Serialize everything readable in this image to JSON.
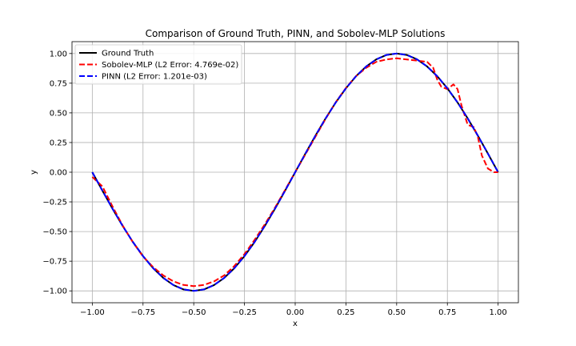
{
  "chart_data": {
    "type": "line",
    "title": "Comparison of Ground Truth, PINN, and Sobolev-MLP Solutions",
    "xlabel": "x",
    "ylabel": "y",
    "xlim": [
      -1.1,
      1.1
    ],
    "ylim": [
      -1.1,
      1.1
    ],
    "grid": true,
    "legend_position": "top-left",
    "xticks": [
      -1.0,
      -0.75,
      -0.5,
      -0.25,
      0.0,
      0.25,
      0.5,
      0.75,
      1.0
    ],
    "xtick_labels": [
      "−1.00",
      "−0.75",
      "−0.50",
      "−0.25",
      "0.00",
      "0.25",
      "0.50",
      "0.75",
      "1.00"
    ],
    "yticks": [
      -1.0,
      -0.75,
      -0.5,
      -0.25,
      0.0,
      0.25,
      0.5,
      0.75,
      1.0
    ],
    "ytick_labels": [
      "−1.00",
      "−0.75",
      "−0.50",
      "−0.25",
      "0.00",
      "0.25",
      "0.50",
      "0.75",
      "1.00"
    ],
    "series": [
      {
        "name": "Ground Truth",
        "color": "#000000",
        "style": "solid",
        "x": [
          -1.0,
          -0.95,
          -0.9,
          -0.85,
          -0.8,
          -0.75,
          -0.7,
          -0.65,
          -0.6,
          -0.55,
          -0.5,
          -0.45,
          -0.4,
          -0.35,
          -0.3,
          -0.25,
          -0.2,
          -0.15,
          -0.1,
          -0.05,
          0.0,
          0.05,
          0.1,
          0.15,
          0.2,
          0.25,
          0.3,
          0.35,
          0.4,
          0.45,
          0.5,
          0.55,
          0.6,
          0.65,
          0.7,
          0.75,
          0.8,
          0.85,
          0.9,
          0.95,
          1.0
        ],
        "y": [
          0.0,
          -0.156,
          -0.309,
          -0.454,
          -0.588,
          -0.707,
          -0.809,
          -0.891,
          -0.951,
          -0.988,
          -1.0,
          -0.988,
          -0.951,
          -0.891,
          -0.809,
          -0.707,
          -0.588,
          -0.454,
          -0.309,
          -0.156,
          0.0,
          0.156,
          0.309,
          0.454,
          0.588,
          0.707,
          0.809,
          0.891,
          0.951,
          0.988,
          1.0,
          0.988,
          0.951,
          0.891,
          0.809,
          0.707,
          0.588,
          0.454,
          0.309,
          0.156,
          0.0
        ]
      },
      {
        "name": "Sobolev-MLP (L2 Error: 4.769e-02)",
        "color": "#ff0000",
        "style": "dashed",
        "x": [
          -1.0,
          -0.95,
          -0.9,
          -0.85,
          -0.8,
          -0.75,
          -0.7,
          -0.65,
          -0.6,
          -0.55,
          -0.5,
          -0.45,
          -0.4,
          -0.35,
          -0.3,
          -0.25,
          -0.2,
          -0.15,
          -0.1,
          -0.05,
          0.0,
          0.05,
          0.1,
          0.15,
          0.2,
          0.25,
          0.3,
          0.35,
          0.4,
          0.45,
          0.5,
          0.55,
          0.6,
          0.65,
          0.68,
          0.7,
          0.72,
          0.75,
          0.78,
          0.8,
          0.82,
          0.85,
          0.88,
          0.9,
          0.92,
          0.95,
          0.98,
          1.0
        ],
        "y": [
          -0.04,
          -0.12,
          -0.29,
          -0.45,
          -0.59,
          -0.71,
          -0.8,
          -0.87,
          -0.92,
          -0.95,
          -0.96,
          -0.95,
          -0.92,
          -0.87,
          -0.79,
          -0.69,
          -0.57,
          -0.44,
          -0.3,
          -0.15,
          0.0,
          0.15,
          0.3,
          0.45,
          0.59,
          0.71,
          0.81,
          0.88,
          0.93,
          0.95,
          0.96,
          0.95,
          0.94,
          0.93,
          0.88,
          0.78,
          0.72,
          0.7,
          0.74,
          0.7,
          0.56,
          0.4,
          0.38,
          0.3,
          0.14,
          0.03,
          0.0,
          0.0
        ]
      },
      {
        "name": "PINN (L2 Error: 1.201e-03)",
        "color": "#0000ff",
        "style": "dashed",
        "x": [
          -1.0,
          -0.95,
          -0.9,
          -0.85,
          -0.8,
          -0.75,
          -0.7,
          -0.65,
          -0.6,
          -0.55,
          -0.5,
          -0.45,
          -0.4,
          -0.35,
          -0.3,
          -0.25,
          -0.2,
          -0.15,
          -0.1,
          -0.05,
          0.0,
          0.05,
          0.1,
          0.15,
          0.2,
          0.25,
          0.3,
          0.35,
          0.4,
          0.45,
          0.5,
          0.55,
          0.6,
          0.65,
          0.7,
          0.75,
          0.8,
          0.85,
          0.9,
          0.95,
          1.0
        ],
        "y": [
          0.0,
          -0.156,
          -0.309,
          -0.454,
          -0.588,
          -0.707,
          -0.809,
          -0.891,
          -0.951,
          -0.988,
          -1.0,
          -0.988,
          -0.951,
          -0.891,
          -0.809,
          -0.707,
          -0.588,
          -0.454,
          -0.309,
          -0.156,
          0.0,
          0.156,
          0.309,
          0.454,
          0.588,
          0.707,
          0.809,
          0.891,
          0.951,
          0.988,
          1.0,
          0.988,
          0.951,
          0.891,
          0.809,
          0.707,
          0.588,
          0.454,
          0.309,
          0.156,
          0.0
        ]
      }
    ]
  }
}
